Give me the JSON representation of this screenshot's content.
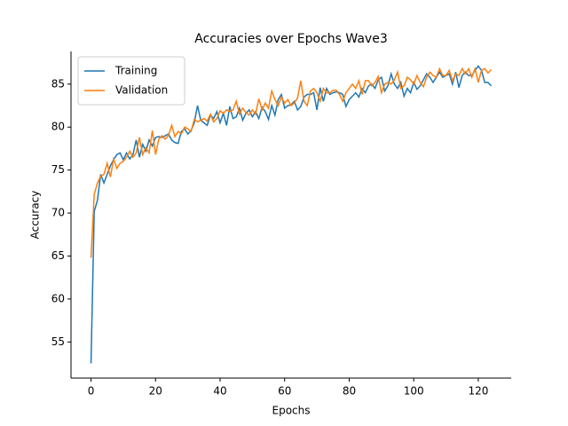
{
  "chart_data": {
    "type": "line",
    "title": "Accuracies over Epochs Wave3",
    "xlabel": "Epochs",
    "ylabel": "Accuracy",
    "x": [
      0,
      1,
      2,
      3,
      4,
      5,
      6,
      7,
      8,
      9,
      10,
      11,
      12,
      13,
      14,
      15,
      16,
      17,
      18,
      19,
      20,
      21,
      22,
      23,
      24,
      25,
      26,
      27,
      28,
      29,
      30,
      31,
      32,
      33,
      34,
      35,
      36,
      37,
      38,
      39,
      40,
      41,
      42,
      43,
      44,
      45,
      46,
      47,
      48,
      49,
      50,
      51,
      52,
      53,
      54,
      55,
      56,
      57,
      58,
      59,
      60,
      61,
      62,
      63,
      64,
      65,
      66,
      67,
      68,
      69,
      70,
      71,
      72,
      73,
      74,
      75,
      76,
      77,
      78,
      79,
      80,
      81,
      82,
      83,
      84,
      85,
      86,
      87,
      88,
      89,
      90,
      91,
      92,
      93,
      94,
      95,
      96,
      97,
      98,
      99,
      100,
      101,
      102,
      103,
      104,
      105,
      106,
      107,
      108,
      109,
      110,
      111,
      112,
      113,
      114,
      115,
      116,
      117,
      118,
      119,
      120,
      121,
      122,
      123,
      124
    ],
    "series": [
      {
        "name": "Training",
        "color": "#1f77b4",
        "values": [
          52.5,
          70.2,
          71.5,
          74.5,
          73.5,
          74.5,
          75.5,
          76.2,
          76.8,
          77.0,
          76.2,
          77.0,
          76.3,
          76.8,
          78.5,
          76.5,
          78.0,
          77.2,
          78.5,
          77.8,
          78.8,
          78.9,
          78.8,
          79.0,
          79.2,
          78.5,
          78.2,
          78.1,
          79.5,
          79.8,
          79.2,
          79.6,
          80.5,
          82.5,
          80.8,
          80.5,
          80.2,
          81.4,
          81.0,
          81.8,
          80.5,
          81.6,
          80.2,
          82.4,
          81.0,
          81.2,
          82.2,
          80.8,
          81.6,
          82.0,
          81.2,
          81.8,
          81.0,
          82.3,
          81.8,
          80.9,
          82.5,
          81.4,
          83.2,
          83.8,
          82.2,
          82.5,
          82.6,
          83.0,
          82.0,
          82.4,
          83.5,
          83.8,
          83.8,
          84.0,
          82.0,
          84.6,
          83.0,
          84.5,
          83.8,
          84.0,
          84.1,
          84.0,
          83.8,
          82.4,
          83.2,
          83.6,
          84.0,
          83.5,
          84.5,
          84.0,
          84.8,
          85.0,
          84.5,
          85.5,
          85.8,
          84.2,
          84.8,
          86.2,
          85.0,
          84.5,
          85.2,
          83.6,
          84.5,
          84.0,
          85.2,
          84.4,
          84.8,
          85.5,
          86.2,
          85.8,
          85.2,
          85.8,
          86.4,
          85.8,
          86.0,
          86.2,
          85.0,
          86.4,
          84.6,
          86.0,
          86.4,
          86.0,
          86.0,
          86.6,
          87.1,
          86.6,
          85.2,
          85.2,
          84.8
        ]
      },
      {
        "name": "Validation",
        "color": "#ff7f0e",
        "values": [
          64.8,
          72.2,
          73.5,
          74.3,
          74.5,
          75.8,
          74.2,
          76.3,
          75.2,
          75.8,
          76.0,
          76.5,
          77.2,
          76.5,
          77.0,
          78.8,
          76.8,
          77.6,
          77.0,
          79.6,
          76.8,
          78.6,
          79.0,
          78.6,
          79.0,
          80.2,
          78.9,
          79.5,
          79.2,
          80.0,
          79.8,
          79.5,
          80.9,
          80.6,
          80.8,
          81.0,
          80.7,
          81.5,
          80.6,
          81.0,
          81.9,
          81.6,
          82.0,
          81.8,
          82.0,
          83.0,
          81.5,
          82.2,
          81.7,
          81.4,
          82.0,
          81.5,
          83.3,
          82.0,
          82.8,
          82.2,
          84.2,
          83.2,
          82.5,
          83.5,
          82.8,
          83.2,
          82.5,
          82.8,
          83.4,
          85.4,
          83.0,
          82.5,
          84.2,
          84.5,
          84.0,
          83.0,
          84.5,
          84.0,
          84.0,
          84.3,
          84.3,
          83.8,
          83.0,
          84.0,
          84.5,
          85.0,
          84.5,
          85.4,
          83.8,
          85.4,
          85.4,
          84.8,
          85.2,
          85.9,
          84.0,
          85.0,
          85.2,
          85.0,
          85.5,
          86.4,
          84.5,
          84.8,
          85.8,
          85.5,
          85.0,
          86.0,
          85.2,
          84.7,
          85.8,
          86.4,
          86.0,
          85.8,
          86.8,
          86.0,
          86.0,
          86.6,
          85.4,
          86.2,
          86.0,
          86.8,
          86.2,
          86.8,
          85.8,
          86.8,
          85.2,
          86.6,
          86.8,
          86.3,
          86.7
        ]
      }
    ],
    "xlim": [
      -6.2,
      130.2
    ],
    "xticks": [
      0,
      20,
      40,
      60,
      80,
      100,
      120
    ],
    "ylim": [
      50.8,
      88.8
    ],
    "yticks": [
      55,
      60,
      65,
      70,
      75,
      80,
      85
    ],
    "grid": false,
    "legend": "upper left"
  }
}
